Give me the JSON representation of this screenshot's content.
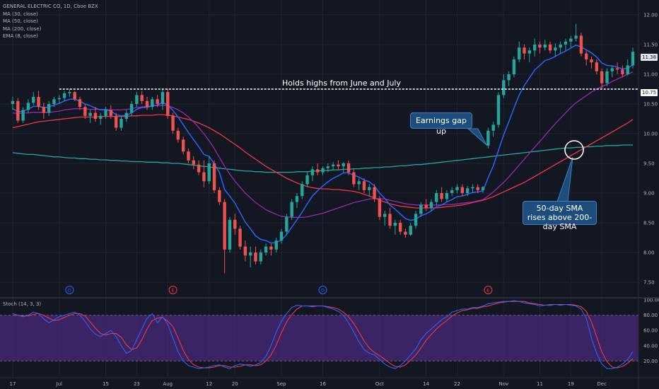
{
  "legend": {
    "symbol": "GENERAL ELECTRIC CO, 1D, Cboe BZX",
    "ma30": "MA (30, close)",
    "ma50": "MA (50, close)",
    "ma200": "MA (200, close)",
    "ema8": "EMA (8, close)"
  },
  "stoch_legend": "Stoch (14, 3, 3)",
  "annotations": {
    "holds_highs": "Holds highs from June and July",
    "earnings_gap": "Earnings gap up",
    "sma_cross": "50-day SMA rises above 200-day SMA"
  },
  "price_tags": {
    "last": "11.38",
    "level": "10.75"
  },
  "colors": {
    "background": "#131722",
    "up": "#26a69a",
    "down": "#ef5350",
    "ema8": "#2962ff",
    "ma30": "#9c27b0",
    "ma50": "#f23645",
    "ma200": "#26a69a",
    "stoch_k": "#2962ff",
    "stoch_d": "#f23645",
    "stoch_band": "#4a2a7a"
  },
  "chart_data": {
    "type": "candlestick",
    "price_axis": {
      "min": 7.25,
      "max": 12.25,
      "ticks": [
        "12.00",
        "11.50",
        "11.00",
        "10.50",
        "10.00",
        "9.50",
        "9.00",
        "8.50",
        "8.00",
        "7.50"
      ]
    },
    "stoch_axis": {
      "min": 0,
      "max": 100,
      "ticks": [
        "100.00",
        "80.00",
        "60.00",
        "40.00",
        "20.00"
      ]
    },
    "x_labels": [
      {
        "i": 0,
        "label": "17"
      },
      {
        "i": 9,
        "label": "Jul"
      },
      {
        "i": 18,
        "label": "15"
      },
      {
        "i": 24,
        "label": "23"
      },
      {
        "i": 30,
        "label": "Aug"
      },
      {
        "i": 38,
        "label": "12"
      },
      {
        "i": 43,
        "label": "20"
      },
      {
        "i": 52,
        "label": "Sep"
      },
      {
        "i": 60,
        "label": "16"
      },
      {
        "i": 71,
        "label": "Oct"
      },
      {
        "i": 80,
        "label": "14"
      },
      {
        "i": 86,
        "label": "22"
      },
      {
        "i": 95,
        "label": "Nov"
      },
      {
        "i": 102,
        "label": "11"
      },
      {
        "i": 108,
        "label": "19"
      },
      {
        "i": 114,
        "label": "Dec"
      }
    ],
    "events": [
      {
        "i": 11,
        "label": "D"
      },
      {
        "i": 31,
        "label": "E"
      },
      {
        "i": 60,
        "label": "D"
      },
      {
        "i": 92,
        "label": "E"
      }
    ],
    "candles": [
      [
        10.5,
        10.62,
        10.4,
        10.55
      ],
      [
        10.55,
        10.6,
        10.18,
        10.22
      ],
      [
        10.22,
        10.45,
        10.18,
        10.4
      ],
      [
        10.4,
        10.58,
        10.35,
        10.52
      ],
      [
        10.52,
        10.7,
        10.48,
        10.62
      ],
      [
        10.62,
        10.72,
        10.4,
        10.45
      ],
      [
        10.45,
        10.52,
        10.25,
        10.35
      ],
      [
        10.35,
        10.55,
        10.3,
        10.5
      ],
      [
        10.5,
        10.62,
        10.45,
        10.58
      ],
      [
        10.58,
        10.65,
        10.5,
        10.6
      ],
      [
        10.6,
        10.72,
        10.55,
        10.68
      ],
      [
        10.68,
        10.75,
        10.62,
        10.7
      ],
      [
        10.7,
        10.72,
        10.55,
        10.58
      ],
      [
        10.58,
        10.62,
        10.4,
        10.45
      ],
      [
        10.45,
        10.5,
        10.25,
        10.3
      ],
      [
        10.3,
        10.4,
        10.18,
        10.35
      ],
      [
        10.35,
        10.45,
        10.2,
        10.25
      ],
      [
        10.25,
        10.35,
        10.15,
        10.3
      ],
      [
        10.3,
        10.45,
        10.25,
        10.4
      ],
      [
        10.4,
        10.48,
        10.25,
        10.3
      ],
      [
        10.3,
        10.35,
        10.05,
        10.1
      ],
      [
        10.1,
        10.3,
        10.05,
        10.25
      ],
      [
        10.25,
        10.4,
        10.2,
        10.35
      ],
      [
        10.35,
        10.55,
        10.3,
        10.5
      ],
      [
        10.5,
        10.7,
        10.45,
        10.65
      ],
      [
        10.65,
        10.72,
        10.5,
        10.55
      ],
      [
        10.55,
        10.62,
        10.4,
        10.45
      ],
      [
        10.45,
        10.62,
        10.4,
        10.58
      ],
      [
        10.58,
        10.65,
        10.45,
        10.5
      ],
      [
        10.5,
        10.75,
        10.4,
        10.7
      ],
      [
        10.7,
        10.75,
        10.25,
        10.3
      ],
      [
        10.3,
        10.35,
        10.0,
        10.05
      ],
      [
        10.05,
        10.1,
        9.85,
        9.9
      ],
      [
        9.9,
        9.95,
        9.65,
        9.7
      ],
      [
        9.7,
        9.75,
        9.5,
        9.55
      ],
      [
        9.55,
        9.62,
        9.4,
        9.48
      ],
      [
        9.48,
        9.55,
        9.3,
        9.35
      ],
      [
        9.35,
        9.55,
        9.1,
        9.2
      ],
      [
        9.2,
        9.62,
        9.15,
        9.5
      ],
      [
        9.5,
        9.55,
        9.0,
        9.05
      ],
      [
        9.05,
        9.1,
        8.8,
        8.85
      ],
      [
        8.85,
        8.9,
        7.65,
        8.05
      ],
      [
        8.05,
        8.6,
        8.0,
        8.55
      ],
      [
        8.55,
        8.65,
        8.3,
        8.4
      ],
      [
        8.4,
        8.45,
        8.05,
        8.1
      ],
      [
        8.1,
        8.2,
        7.85,
        7.95
      ],
      [
        7.95,
        8.1,
        7.75,
        8.0
      ],
      [
        8.0,
        8.1,
        7.8,
        7.85
      ],
      [
        7.85,
        8.05,
        7.8,
        8.0
      ],
      [
        8.0,
        8.15,
        7.95,
        8.1
      ],
      [
        8.1,
        8.15,
        7.95,
        8.05
      ],
      [
        8.05,
        8.25,
        8.0,
        8.2
      ],
      [
        8.2,
        8.4,
        8.15,
        8.35
      ],
      [
        8.35,
        8.65,
        8.3,
        8.6
      ],
      [
        8.6,
        8.9,
        8.55,
        8.85
      ],
      [
        8.85,
        9.0,
        8.75,
        8.95
      ],
      [
        8.95,
        9.2,
        8.9,
        9.15
      ],
      [
        9.15,
        9.35,
        9.1,
        9.3
      ],
      [
        9.3,
        9.45,
        9.2,
        9.4
      ],
      [
        9.4,
        9.5,
        9.3,
        9.35
      ],
      [
        9.35,
        9.45,
        9.3,
        9.42
      ],
      [
        9.42,
        9.5,
        9.35,
        9.45
      ],
      [
        9.45,
        9.52,
        9.4,
        9.48
      ],
      [
        9.48,
        9.55,
        9.4,
        9.45
      ],
      [
        9.45,
        9.52,
        9.35,
        9.5
      ],
      [
        9.5,
        9.55,
        9.3,
        9.35
      ],
      [
        9.35,
        9.4,
        9.1,
        9.15
      ],
      [
        9.15,
        9.25,
        9.05,
        9.2
      ],
      [
        9.2,
        9.25,
        9.0,
        9.05
      ],
      [
        9.05,
        9.15,
        8.95,
        9.1
      ],
      [
        9.1,
        9.15,
        8.85,
        8.9
      ],
      [
        8.9,
        8.95,
        8.55,
        8.6
      ],
      [
        8.6,
        8.7,
        8.45,
        8.65
      ],
      [
        8.65,
        8.75,
        8.4,
        8.45
      ],
      [
        8.45,
        8.55,
        8.3,
        8.5
      ],
      [
        8.5,
        8.55,
        8.3,
        8.35
      ],
      [
        8.35,
        8.4,
        8.25,
        8.3
      ],
      [
        8.3,
        8.5,
        8.28,
        8.45
      ],
      [
        8.45,
        8.7,
        8.4,
        8.65
      ],
      [
        8.65,
        8.85,
        8.6,
        8.8
      ],
      [
        8.8,
        8.9,
        8.7,
        8.75
      ],
      [
        8.75,
        8.9,
        8.7,
        8.85
      ],
      [
        8.85,
        9.05,
        8.8,
        9.0
      ],
      [
        9.0,
        9.1,
        8.85,
        8.9
      ],
      [
        8.9,
        9.05,
        8.85,
        9.0
      ],
      [
        9.0,
        9.1,
        8.95,
        9.05
      ],
      [
        9.05,
        9.15,
        9.0,
        9.1
      ],
      [
        9.1,
        9.15,
        8.95,
        9.0
      ],
      [
        9.0,
        9.12,
        8.95,
        9.08
      ],
      [
        9.08,
        9.15,
        9.0,
        9.1
      ],
      [
        9.1,
        9.15,
        9.0,
        9.05
      ],
      [
        9.05,
        9.12,
        9.0,
        9.1
      ],
      [
        9.8,
        10.1,
        9.75,
        10.05
      ],
      [
        10.05,
        10.2,
        9.95,
        10.15
      ],
      [
        10.15,
        10.7,
        10.1,
        10.65
      ],
      [
        10.65,
        11.0,
        10.6,
        10.9
      ],
      [
        10.9,
        11.05,
        10.8,
        11.0
      ],
      [
        11.0,
        11.3,
        10.95,
        11.25
      ],
      [
        11.25,
        11.55,
        11.2,
        11.45
      ],
      [
        11.45,
        11.5,
        11.25,
        11.35
      ],
      [
        11.35,
        11.45,
        11.2,
        11.4
      ],
      [
        11.4,
        11.6,
        11.3,
        11.5
      ],
      [
        11.5,
        11.55,
        11.35,
        11.45
      ],
      [
        11.45,
        11.58,
        11.4,
        11.5
      ],
      [
        11.5,
        11.55,
        11.35,
        11.4
      ],
      [
        11.4,
        11.52,
        11.3,
        11.45
      ],
      [
        11.45,
        11.55,
        11.35,
        11.5
      ],
      [
        11.5,
        11.6,
        11.4,
        11.55
      ],
      [
        11.55,
        11.65,
        11.45,
        11.6
      ],
      [
        11.6,
        11.85,
        11.55,
        11.65
      ],
      [
        11.65,
        11.7,
        11.3,
        11.35
      ],
      [
        11.35,
        11.4,
        11.15,
        11.25
      ],
      [
        11.25,
        11.3,
        11.1,
        11.2
      ],
      [
        11.2,
        11.25,
        11.0,
        11.05
      ],
      [
        11.05,
        11.1,
        10.75,
        10.85
      ],
      [
        10.85,
        11.1,
        10.8,
        11.05
      ],
      [
        11.05,
        11.15,
        10.95,
        11.1
      ],
      [
        11.1,
        11.2,
        11.0,
        11.08
      ],
      [
        11.08,
        11.15,
        10.95,
        11.0
      ],
      [
        11.0,
        11.25,
        10.98,
        11.15
      ],
      [
        11.15,
        11.45,
        11.1,
        11.38
      ]
    ],
    "ema8": [
      10.42,
      10.37,
      10.38,
      10.41,
      10.46,
      10.46,
      10.44,
      10.45,
      10.48,
      10.51,
      10.55,
      10.58,
      10.58,
      10.55,
      10.5,
      10.47,
      10.43,
      10.4,
      10.4,
      10.38,
      10.32,
      10.3,
      10.31,
      10.35,
      10.41,
      10.44,
      10.44,
      10.47,
      10.48,
      10.53,
      10.48,
      10.39,
      10.28,
      10.15,
      10.02,
      9.9,
      9.78,
      9.65,
      9.62,
      9.49,
      9.35,
      9.06,
      8.95,
      8.83,
      8.67,
      8.51,
      8.4,
      8.28,
      8.22,
      8.2,
      8.16,
      8.17,
      8.21,
      8.3,
      8.43,
      8.55,
      8.68,
      8.82,
      8.95,
      9.04,
      9.12,
      9.19,
      9.25,
      9.29,
      9.34,
      9.34,
      9.3,
      9.27,
      9.22,
      9.19,
      9.12,
      9.0,
      8.91,
      8.8,
      8.73,
      8.65,
      8.57,
      8.54,
      8.56,
      8.62,
      8.65,
      8.7,
      8.77,
      8.8,
      8.85,
      8.89,
      8.94,
      8.95,
      8.98,
      9.01,
      9.02,
      9.04,
      9.26,
      9.46,
      9.72,
      9.98,
      10.2,
      10.43,
      10.65,
      10.81,
      10.94,
      11.07,
      11.15,
      11.23,
      11.26,
      11.3,
      11.35,
      11.39,
      11.44,
      11.49,
      11.46,
      11.41,
      11.36,
      11.29,
      11.19,
      11.15,
      11.14,
      11.12,
      11.09,
      11.1,
      11.16
    ],
    "ma30": [
      10.35,
      10.34,
      10.35,
      10.35,
      10.36,
      10.36,
      10.36,
      10.36,
      10.37,
      10.38,
      10.4,
      10.41,
      10.42,
      10.42,
      10.42,
      10.41,
      10.41,
      10.41,
      10.41,
      10.4,
      10.4,
      10.4,
      10.41,
      10.42,
      10.44,
      10.45,
      10.46,
      10.47,
      10.47,
      10.48,
      10.47,
      10.44,
      10.4,
      10.35,
      10.28,
      10.2,
      10.1,
      10.0,
      9.88,
      9.75,
      9.6,
      9.45,
      9.32,
      9.2,
      9.1,
      9.0,
      8.92,
      8.84,
      8.78,
      8.72,
      8.68,
      8.64,
      8.61,
      8.6,
      8.59,
      8.59,
      8.59,
      8.6,
      8.62,
      8.64,
      8.66,
      8.69,
      8.72,
      8.75,
      8.78,
      8.81,
      8.84,
      8.86,
      8.88,
      8.9,
      8.91,
      8.91,
      8.9,
      8.88,
      8.86,
      8.84,
      8.82,
      8.81,
      8.8,
      8.8,
      8.8,
      8.8,
      8.8,
      8.8,
      8.81,
      8.81,
      8.82,
      8.83,
      8.84,
      8.85,
      8.87,
      8.89,
      8.95,
      9.02,
      9.1,
      9.18,
      9.27,
      9.37,
      9.47,
      9.57,
      9.67,
      9.77,
      9.87,
      9.97,
      10.07,
      10.17,
      10.26,
      10.35,
      10.44,
      10.52,
      10.58,
      10.64,
      10.7,
      10.75,
      10.79,
      10.83,
      10.88,
      10.92,
      10.96,
      11.0,
      11.04
    ],
    "ma50": [
      10.1,
      10.12,
      10.14,
      10.16,
      10.18,
      10.2,
      10.21,
      10.22,
      10.23,
      10.24,
      10.25,
      10.26,
      10.27,
      10.28,
      10.28,
      10.28,
      10.28,
      10.29,
      10.29,
      10.29,
      10.29,
      10.29,
      10.29,
      10.3,
      10.3,
      10.31,
      10.31,
      10.31,
      10.32,
      10.32,
      10.31,
      10.3,
      10.28,
      10.26,
      10.24,
      10.21,
      10.18,
      10.14,
      10.1,
      10.05,
      10.0,
      9.94,
      9.88,
      9.82,
      9.76,
      9.69,
      9.63,
      9.57,
      9.51,
      9.45,
      9.4,
      9.35,
      9.3,
      9.25,
      9.21,
      9.17,
      9.14,
      9.11,
      9.09,
      9.08,
      9.07,
      9.07,
      9.06,
      9.06,
      9.05,
      9.04,
      9.03,
      9.01,
      8.98,
      8.95,
      8.92,
      8.88,
      8.85,
      8.82,
      8.8,
      8.78,
      8.77,
      8.76,
      8.75,
      8.75,
      8.75,
      8.75,
      8.75,
      8.76,
      8.77,
      8.78,
      8.79,
      8.8,
      8.82,
      8.84,
      8.86,
      8.88,
      8.91,
      8.94,
      8.98,
      9.02,
      9.06,
      9.1,
      9.14,
      9.18,
      9.23,
      9.28,
      9.33,
      9.38,
      9.43,
      9.48,
      9.53,
      9.58,
      9.63,
      9.68,
      9.73,
      9.78,
      9.83,
      9.88,
      9.93,
      9.98,
      10.03,
      10.08,
      10.13,
      10.18,
      10.24
    ],
    "ma200": [
      9.68,
      9.67,
      9.66,
      9.65,
      9.65,
      9.64,
      9.63,
      9.62,
      9.61,
      9.61,
      9.6,
      9.59,
      9.59,
      9.58,
      9.58,
      9.57,
      9.57,
      9.56,
      9.56,
      9.55,
      9.55,
      9.54,
      9.54,
      9.53,
      9.53,
      9.53,
      9.52,
      9.52,
      9.52,
      9.51,
      9.51,
      9.5,
      9.5,
      9.49,
      9.48,
      9.47,
      9.46,
      9.45,
      9.44,
      9.43,
      9.42,
      9.41,
      9.4,
      9.39,
      9.38,
      9.37,
      9.37,
      9.36,
      9.36,
      9.35,
      9.35,
      9.35,
      9.35,
      9.35,
      9.35,
      9.36,
      9.36,
      9.36,
      9.37,
      9.37,
      9.38,
      9.38,
      9.39,
      9.39,
      9.4,
      9.4,
      9.41,
      9.41,
      9.42,
      9.42,
      9.43,
      9.43,
      9.44,
      9.44,
      9.45,
      9.46,
      9.46,
      9.47,
      9.48,
      9.48,
      9.49,
      9.5,
      9.51,
      9.52,
      9.53,
      9.54,
      9.55,
      9.56,
      9.57,
      9.58,
      9.59,
      9.6,
      9.61,
      9.62,
      9.63,
      9.64,
      9.65,
      9.66,
      9.67,
      9.68,
      9.69,
      9.7,
      9.71,
      9.72,
      9.73,
      9.74,
      9.75,
      9.76,
      9.76,
      9.77,
      9.77,
      9.78,
      9.78,
      9.79,
      9.79,
      9.8,
      9.8,
      9.8,
      9.81,
      9.81,
      9.81
    ],
    "stoch_k": [
      82,
      80,
      78,
      80,
      84,
      82,
      75,
      70,
      74,
      78,
      80,
      82,
      84,
      80,
      72,
      62,
      55,
      52,
      56,
      60,
      52,
      40,
      30,
      34,
      48,
      62,
      76,
      82,
      70,
      78,
      68,
      50,
      32,
      20,
      14,
      12,
      10,
      11,
      12,
      14,
      15,
      12,
      10,
      14,
      16,
      15,
      13,
      15,
      18,
      26,
      40,
      58,
      72,
      82,
      90,
      93,
      92,
      92,
      91,
      92,
      92,
      90,
      88,
      85,
      80,
      70,
      58,
      45,
      35,
      30,
      28,
      22,
      16,
      12,
      10,
      14,
      20,
      28,
      36,
      48,
      56,
      62,
      68,
      74,
      78,
      84,
      86,
      88,
      88,
      90,
      90,
      92,
      95,
      96,
      97,
      98,
      98,
      99,
      98,
      96,
      95,
      94,
      92,
      93,
      94,
      94,
      93,
      94,
      93,
      92,
      88,
      76,
      50,
      30,
      16,
      10,
      10,
      12,
      16,
      22,
      32
    ],
    "stoch_d": [
      80,
      80,
      79,
      79,
      81,
      82,
      80,
      76,
      73,
      74,
      77,
      80,
      82,
      82,
      79,
      71,
      63,
      56,
      54,
      56,
      56,
      51,
      41,
      35,
      37,
      48,
      62,
      73,
      76,
      77,
      72,
      65,
      50,
      34,
      22,
      15,
      12,
      11,
      11,
      12,
      14,
      14,
      12,
      12,
      13,
      15,
      15,
      14,
      15,
      20,
      28,
      41,
      57,
      71,
      81,
      88,
      92,
      92,
      92,
      92,
      92,
      91,
      90,
      88,
      84,
      78,
      69,
      58,
      46,
      37,
      31,
      27,
      22,
      17,
      13,
      12,
      15,
      21,
      28,
      37,
      47,
      55,
      62,
      68,
      73,
      79,
      83,
      86,
      87,
      89,
      89,
      91,
      92,
      94,
      96,
      97,
      98,
      98,
      98,
      98,
      96,
      95,
      94,
      93,
      93,
      94,
      94,
      94,
      94,
      93,
      91,
      85,
      71,
      52,
      32,
      19,
      12,
      11,
      13,
      17,
      23
    ]
  }
}
